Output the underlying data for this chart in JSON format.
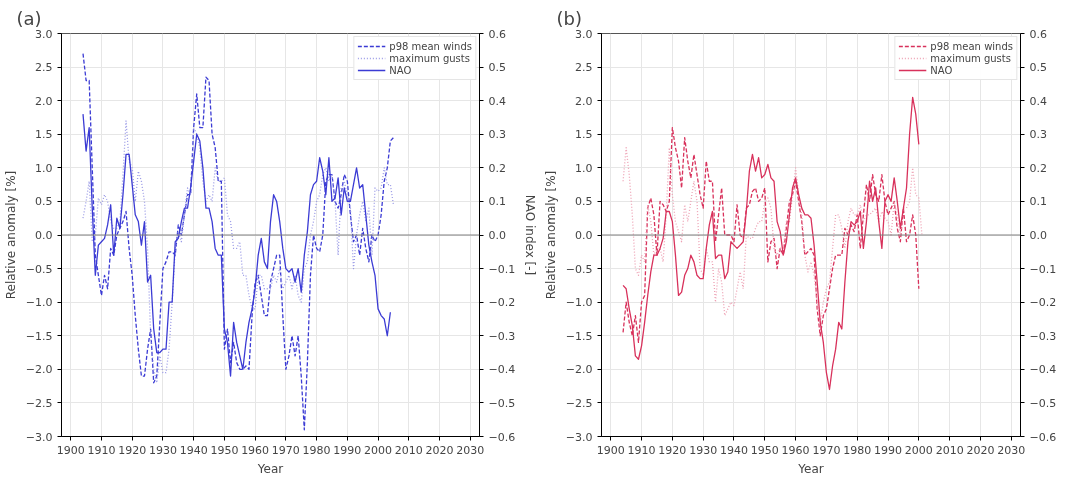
{
  "chart_data": [
    {
      "type": "line",
      "title": "(a)",
      "xlabel": "Year",
      "ylabel": "Relative anomaly [%]",
      "y2label": "NAO index [-]",
      "x": [
        1904,
        1905,
        1906,
        1907,
        1908,
        1909,
        1910,
        1911,
        1912,
        1913,
        1914,
        1915,
        1916,
        1917,
        1918,
        1919,
        1920,
        1921,
        1922,
        1923,
        1924,
        1925,
        1926,
        1927,
        1928,
        1929,
        1930,
        1931,
        1932,
        1933,
        1934,
        1935,
        1936,
        1937,
        1938,
        1939,
        1940,
        1941,
        1942,
        1943,
        1944,
        1945,
        1946,
        1947,
        1948,
        1949,
        1950,
        1951,
        1952,
        1953,
        1954,
        1955,
        1956,
        1957,
        1958,
        1959,
        1960,
        1961,
        1962,
        1963,
        1964,
        1965,
        1966,
        1967,
        1968,
        1969,
        1970,
        1971,
        1972,
        1973,
        1974,
        1975,
        1976,
        1977,
        1978,
        1979,
        1980,
        1981,
        1982,
        1983,
        1984,
        1985,
        1986,
        1987,
        1988,
        1989,
        1990,
        1991,
        1992,
        1993,
        1994,
        1995,
        1996,
        1997,
        1998,
        1999,
        2000,
        2001,
        2002,
        2003,
        2004,
        2005
      ],
      "series": [
        {
          "name": "p98 mean winds",
          "color": "#3b3bd4",
          "line_style": "dashed",
          "values": [
            2.7,
            2.3,
            2.3,
            1.0,
            -0.3,
            -0.6,
            -0.9,
            -0.6,
            -0.8,
            -0.2,
            -0.3,
            0.0,
            0.1,
            0.2,
            0.35,
            -0.2,
            -0.6,
            -1.2,
            -1.7,
            -2.1,
            -2.1,
            -1.7,
            -1.4,
            -2.2,
            -2.1,
            -1.3,
            -0.5,
            -0.4,
            -0.25,
            -0.25,
            -0.3,
            0.15,
            0.0,
            0.3,
            0.6,
            0.6,
            1.6,
            2.1,
            1.6,
            1.6,
            2.35,
            2.3,
            1.5,
            1.3,
            0.8,
            0.8,
            -1.7,
            -1.4,
            -1.9,
            -1.6,
            -1.9,
            -2.0,
            -2.0,
            -1.95,
            -2.0,
            -1.2,
            -0.7,
            -0.6,
            -0.9,
            -1.2,
            -1.2,
            -0.7,
            -0.5,
            -0.3,
            -0.3,
            -1.2,
            -2.0,
            -1.8,
            -1.5,
            -1.8,
            -1.5,
            -2.1,
            -2.9,
            -1.9,
            -0.6,
            0.0,
            -0.2,
            -0.25,
            0.0,
            0.8,
            0.9,
            0.9,
            0.5,
            0.4,
            0.6,
            0.9,
            0.8,
            0.3,
            -0.1,
            0.0,
            -0.3,
            0.1,
            -0.2,
            -0.4,
            0.0,
            -0.1,
            0.0,
            0.3,
            0.8,
            1.0,
            1.4,
            1.45
          ]
        },
        {
          "name": "maximum gusts",
          "color": "#9a9ae6",
          "line_style": "dotted",
          "values": [
            0.25,
            0.5,
            0.8,
            -0.1,
            0.0,
            0.55,
            0.45,
            0.6,
            0.5,
            0.2,
            0.1,
            0.1,
            0.2,
            0.9,
            1.7,
            1.1,
            1.0,
            0.5,
            0.95,
            0.8,
            0.5,
            -0.2,
            -1.5,
            -2.0,
            -2.2,
            -1.8,
            -2.05,
            -2.05,
            -1.7,
            -1.0,
            -0.2,
            0.05,
            -0.1,
            0.3,
            0.7,
            0.6,
            1.6,
            1.5,
            1.3,
            0.8,
            0.5,
            0.6,
            0.5,
            1.0,
            0.8,
            0.8,
            0.85,
            0.3,
            0.2,
            -0.2,
            -0.2,
            -0.1,
            -0.6,
            -0.6,
            -0.9,
            -1.1,
            -1.1,
            -0.6,
            -0.6,
            -0.8,
            -0.8,
            -0.8,
            -0.6,
            -0.7,
            -0.5,
            -0.8,
            -0.7,
            -0.6,
            -0.8,
            -0.6,
            -0.9,
            -1.0,
            -0.5,
            -0.4,
            0.0,
            0.2,
            0.5,
            0.6,
            0.9,
            1.0,
            0.8,
            0.9,
            0.5,
            -0.3,
            0.7,
            0.8,
            0.6,
            0.4,
            -0.5,
            0.0,
            0.3,
            0.5,
            0.2,
            0.4,
            -0.3,
            0.7,
            0.65,
            0.7,
            1.0,
            0.75,
            0.75,
            0.45
          ]
        },
        {
          "name": "NAO",
          "color": "#3b3bd4",
          "line_style": "solid",
          "axis": "y2",
          "values": [
            0.36,
            0.25,
            0.32,
            0.08,
            -0.12,
            -0.03,
            -0.02,
            -0.01,
            0.03,
            0.09,
            -0.06,
            0.05,
            0.02,
            0.12,
            0.24,
            0.24,
            0.15,
            0.06,
            0.04,
            -0.03,
            0.04,
            -0.14,
            -0.12,
            -0.28,
            -0.35,
            -0.35,
            -0.34,
            -0.34,
            -0.2,
            -0.2,
            -0.02,
            -0.01,
            0.04,
            0.08,
            0.08,
            0.14,
            0.22,
            0.3,
            0.28,
            0.2,
            0.08,
            0.08,
            0.04,
            -0.04,
            -0.06,
            -0.06,
            -0.28,
            -0.32,
            -0.42,
            -0.26,
            -0.32,
            -0.36,
            -0.4,
            -0.32,
            -0.26,
            -0.22,
            -0.16,
            -0.06,
            -0.01,
            -0.08,
            -0.1,
            0.04,
            0.12,
            0.1,
            0.04,
            -0.04,
            -0.1,
            -0.11,
            -0.1,
            -0.14,
            -0.1,
            -0.17,
            -0.06,
            0.01,
            0.12,
            0.15,
            0.16,
            0.23,
            0.19,
            0.12,
            0.23,
            0.1,
            0.11,
            0.17,
            0.06,
            0.14,
            0.1,
            0.1,
            0.15,
            0.2,
            0.14,
            0.15,
            0.06,
            -0.03,
            -0.08,
            -0.12,
            -0.22,
            -0.24,
            -0.25,
            -0.3,
            -0.23,
            null
          ]
        }
      ],
      "xlim": [
        1897,
        2033
      ],
      "ylim": [
        -3.0,
        3.0
      ],
      "y2lim": [
        -0.6,
        0.6
      ],
      "xticks": [
        1900,
        1910,
        1920,
        1930,
        1940,
        1950,
        1960,
        1970,
        1980,
        1990,
        2000,
        2010,
        2020,
        2030
      ],
      "yticks": [
        {
          "value": -3.0,
          "label": "−3.0"
        },
        {
          "value": -2.5,
          "label": "−2.5"
        },
        {
          "value": -2.0,
          "label": "−2.0"
        },
        {
          "value": -1.5,
          "label": "−1.5"
        },
        {
          "value": -1.0,
          "label": "−1.0"
        },
        {
          "value": -0.5,
          "label": "−0.5"
        },
        {
          "value": 0.0,
          "label": "0.0"
        },
        {
          "value": 0.5,
          "label": "0.5"
        },
        {
          "value": 1.0,
          "label": "1.0"
        },
        {
          "value": 1.5,
          "label": "1.5"
        },
        {
          "value": 2.0,
          "label": "2.0"
        },
        {
          "value": 2.5,
          "label": "2.5"
        },
        {
          "value": 3.0,
          "label": "3.0"
        }
      ],
      "y2ticks": [
        {
          "value": -0.6,
          "label": "−0.6"
        },
        {
          "value": -0.5,
          "label": "−0.5"
        },
        {
          "value": -0.4,
          "label": "−0.4"
        },
        {
          "value": -0.3,
          "label": "−0.3"
        },
        {
          "value": -0.2,
          "label": "−0.2"
        },
        {
          "value": -0.1,
          "label": "−0.1"
        },
        {
          "value": 0.0,
          "label": "0.0"
        },
        {
          "value": 0.1,
          "label": "0.1"
        },
        {
          "value": 0.2,
          "label": "0.2"
        },
        {
          "value": 0.3,
          "label": "0.3"
        },
        {
          "value": 0.4,
          "label": "0.4"
        },
        {
          "value": 0.5,
          "label": "0.5"
        },
        {
          "value": 0.6,
          "label": "0.6"
        }
      ],
      "ref_lines": [
        {
          "axis": "y",
          "value": 0,
          "color": "#808080"
        }
      ],
      "grid": true,
      "legend": "top right"
    },
    {
      "type": "line",
      "title": "(b)",
      "xlabel": "Year",
      "ylabel": "Relative anomaly [%]",
      "x": [
        1904,
        1905,
        1906,
        1907,
        1908,
        1909,
        1910,
        1911,
        1912,
        1913,
        1914,
        1915,
        1916,
        1917,
        1918,
        1919,
        1920,
        1921,
        1922,
        1923,
        1924,
        1925,
        1926,
        1927,
        1928,
        1929,
        1930,
        1931,
        1932,
        1933,
        1934,
        1935,
        1936,
        1937,
        1938,
        1939,
        1940,
        1941,
        1942,
        1943,
        1944,
        1945,
        1946,
        1947,
        1948,
        1949,
        1950,
        1951,
        1952,
        1953,
        1954,
        1955,
        1956,
        1957,
        1958,
        1959,
        1960,
        1961,
        1962,
        1963,
        1964,
        1965,
        1966,
        1967,
        1968,
        1969,
        1970,
        1971,
        1972,
        1973,
        1974,
        1975,
        1976,
        1977,
        1978,
        1979,
        1980,
        1981,
        1982,
        1983,
        1984,
        1985,
        1986,
        1987,
        1988,
        1989,
        1990,
        1991,
        1992,
        1993,
        1994,
        1995,
        1996,
        1997,
        1998,
        1999,
        2000,
        2001
      ],
      "series": [
        {
          "name": "p98 mean winds",
          "color": "#d8315b",
          "line_style": "dashed",
          "values": [
            -1.45,
            -1.0,
            -1.3,
            -1.5,
            -1.2,
            -1.6,
            -1.0,
            -0.9,
            0.4,
            0.55,
            0.3,
            -0.3,
            0.5,
            0.45,
            0.35,
            0.5,
            1.6,
            1.3,
            1.1,
            0.7,
            1.45,
            1.1,
            0.85,
            1.2,
            0.9,
            0.6,
            0.4,
            1.1,
            0.8,
            0.8,
            -0.1,
            0.3,
            0.7,
            0.0,
            0.0,
            0.0,
            -0.1,
            0.45,
            0.0,
            -0.05,
            0.4,
            0.45,
            0.65,
            0.7,
            0.5,
            0.55,
            0.7,
            -0.4,
            -0.1,
            -0.05,
            -0.5,
            -0.2,
            -0.3,
            0.1,
            0.5,
            0.6,
            0.8,
            0.5,
            0.2,
            -0.3,
            -0.25,
            -0.2,
            -0.3,
            -1.1,
            -1.5,
            -1.2,
            -1.1,
            -0.8,
            -0.5,
            -0.3,
            -0.3,
            -0.3,
            0.1,
            0.0,
            0.15,
            0.05,
            0.3,
            -0.2,
            0.3,
            0.75,
            0.5,
            0.9,
            0.6,
            0.5,
            0.9,
            0.5,
            0.3,
            0.4,
            0.5,
            0.1,
            -0.1,
            0.4,
            -0.1,
            0.0,
            0.3,
            0.0,
            -0.8,
            null
          ]
        },
        {
          "name": "maximum gusts",
          "color": "#eda0b3",
          "line_style": "dotted",
          "values": [
            0.8,
            1.3,
            0.9,
            0.3,
            -0.5,
            -0.6,
            -0.3,
            -0.4,
            0.45,
            0.2,
            -0.3,
            -0.2,
            -0.2,
            -0.4,
            0.3,
            1.3,
            0.6,
            0.2,
            0.05,
            -0.1,
            0.45,
            0.2,
            0.5,
            0.8,
            0.5,
            -0.5,
            -0.6,
            -0.2,
            -0.4,
            -0.4,
            -1.0,
            -0.5,
            -0.7,
            -1.2,
            -1.1,
            -1.0,
            -1.05,
            -0.8,
            -0.55,
            -0.8,
            0.0,
            -0.05,
            -0.05,
            0.1,
            0.2,
            0.2,
            0.5,
            0.55,
            0.4,
            -0.2,
            -0.3,
            -0.2,
            -0.2,
            0.2,
            0.2,
            0.6,
            1.0,
            0.6,
            0.3,
            -0.3,
            -0.55,
            -0.4,
            -0.6,
            -1.0,
            -1.3,
            -1.0,
            -0.8,
            -0.7,
            -0.2,
            0.3,
            0.3,
            0.1,
            -0.2,
            0.2,
            0.4,
            0.3,
            0.3,
            0.45,
            0.2,
            0.3,
            0.3,
            0.35,
            0.4,
            0.2,
            0.35,
            0.25,
            0.2,
            0.0,
            0.5,
            0.3,
            0.0,
            0.4,
            0.4,
            0.5,
            1.0,
            0.6,
            0.55,
            0.0
          ]
        },
        {
          "name": "NAO",
          "color": "#d8315b",
          "line_style": "solid",
          "axis": "y2",
          "values": [
            -0.15,
            -0.16,
            -0.22,
            -0.27,
            -0.36,
            -0.37,
            -0.33,
            -0.26,
            -0.18,
            -0.11,
            -0.06,
            -0.06,
            -0.04,
            -0.01,
            0.07,
            0.07,
            0.04,
            -0.06,
            -0.18,
            -0.17,
            -0.12,
            -0.1,
            -0.06,
            -0.08,
            -0.12,
            -0.13,
            -0.13,
            -0.04,
            0.03,
            0.07,
            -0.07,
            -0.06,
            -0.06,
            -0.13,
            -0.11,
            -0.02,
            -0.03,
            -0.04,
            -0.03,
            -0.02,
            0.07,
            0.19,
            0.24,
            0.19,
            0.23,
            0.17,
            0.18,
            0.21,
            0.17,
            0.16,
            0.04,
            0.01,
            -0.06,
            -0.02,
            0.06,
            0.14,
            0.17,
            0.12,
            0.08,
            0.06,
            0.06,
            0.05,
            -0.03,
            -0.14,
            -0.26,
            -0.32,
            -0.41,
            -0.46,
            -0.39,
            -0.34,
            -0.26,
            -0.28,
            -0.14,
            -0.02,
            0.04,
            0.03,
            0.04,
            0.07,
            -0.04,
            0.04,
            0.16,
            0.1,
            0.14,
            0.04,
            -0.04,
            0.1,
            0.12,
            0.1,
            0.17,
            0.1,
            0.02,
            0.08,
            0.14,
            0.3,
            0.41,
            0.36,
            0.27,
            null
          ]
        }
      ],
      "xlim": [
        1897,
        2033
      ],
      "ylim": [
        -3.0,
        3.0
      ],
      "y2lim": [
        -0.6,
        0.6
      ],
      "xticks": [
        1900,
        1910,
        1920,
        1930,
        1940,
        1950,
        1960,
        1970,
        1980,
        1990,
        2000,
        2010,
        2020,
        2030
      ],
      "yticks": [
        {
          "value": -3.0,
          "label": "−3.0"
        },
        {
          "value": -2.5,
          "label": "−2.5"
        },
        {
          "value": -2.0,
          "label": "−2.0"
        },
        {
          "value": -1.5,
          "label": "−1.5"
        },
        {
          "value": -1.0,
          "label": "−1.0"
        },
        {
          "value": -0.5,
          "label": "−0.5"
        },
        {
          "value": 0.0,
          "label": "0.0"
        },
        {
          "value": 0.5,
          "label": "0.5"
        },
        {
          "value": 1.0,
          "label": "1.0"
        },
        {
          "value": 1.5,
          "label": "1.5"
        },
        {
          "value": 2.0,
          "label": "2.0"
        },
        {
          "value": 2.5,
          "label": "2.5"
        },
        {
          "value": 3.0,
          "label": "3.0"
        }
      ],
      "y2ticks": [
        {
          "value": -0.6,
          "label": "−0.6"
        },
        {
          "value": -0.5,
          "label": "−0.5"
        },
        {
          "value": -0.4,
          "label": "−0.4"
        },
        {
          "value": -0.3,
          "label": "−0.3"
        },
        {
          "value": -0.2,
          "label": "−0.2"
        },
        {
          "value": -0.1,
          "label": "−0.1"
        },
        {
          "value": 0.0,
          "label": "0.0"
        },
        {
          "value": 0.1,
          "label": "0.1"
        },
        {
          "value": 0.2,
          "label": "0.2"
        },
        {
          "value": 0.3,
          "label": "0.3"
        },
        {
          "value": 0.4,
          "label": "0.4"
        },
        {
          "value": 0.5,
          "label": "0.5"
        },
        {
          "value": 0.6,
          "label": "0.6"
        }
      ],
      "ref_lines": [
        {
          "axis": "y",
          "value": 0,
          "color": "#808080"
        }
      ],
      "grid": true,
      "legend": "top right"
    }
  ]
}
